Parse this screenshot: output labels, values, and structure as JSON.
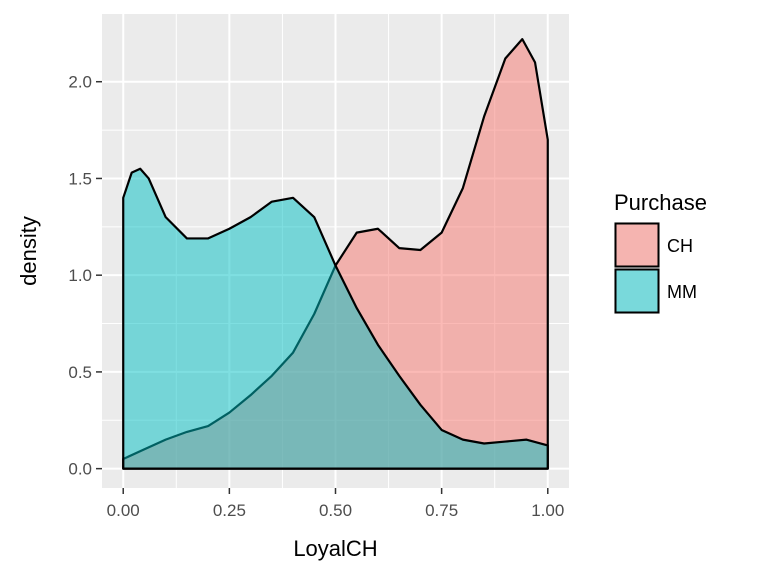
{
  "chart_data": {
    "type": "area",
    "title": "",
    "xlabel": "LoyalCH",
    "ylabel": "density",
    "xlim": [
      -0.05,
      1.05
    ],
    "ylim": [
      -0.1,
      2.35
    ],
    "grid": true,
    "legend_position": "right",
    "x_ticks": [
      0,
      0.25,
      0.5,
      0.75,
      1
    ],
    "x_tick_labels": [
      "0.00",
      "0.25",
      "0.50",
      "0.75",
      "1.00"
    ],
    "y_ticks": [
      0,
      0.5,
      1,
      1.5,
      2
    ],
    "y_tick_labels": [
      "0.0",
      "0.5",
      "1.0",
      "1.5",
      "2.0"
    ],
    "legend": {
      "title": "Purchase",
      "items": [
        {
          "label": "CH",
          "color": "#F8766D"
        },
        {
          "label": "MM",
          "color": "#00BFC4"
        }
      ]
    },
    "series": [
      {
        "name": "CH",
        "color": "#F8766D",
        "x": [
          0,
          0.05,
          0.1,
          0.15,
          0.2,
          0.25,
          0.3,
          0.35,
          0.4,
          0.45,
          0.5,
          0.55,
          0.6,
          0.65,
          0.7,
          0.75,
          0.8,
          0.85,
          0.9,
          0.94,
          0.97,
          1.0
        ],
        "y": [
          0.05,
          0.1,
          0.15,
          0.19,
          0.22,
          0.29,
          0.38,
          0.48,
          0.6,
          0.8,
          1.05,
          1.22,
          1.24,
          1.14,
          1.13,
          1.22,
          1.45,
          1.82,
          2.12,
          2.22,
          2.1,
          1.7
        ]
      },
      {
        "name": "MM",
        "color": "#00BFC4",
        "x": [
          0,
          0.02,
          0.04,
          0.06,
          0.1,
          0.15,
          0.2,
          0.25,
          0.3,
          0.35,
          0.4,
          0.45,
          0.5,
          0.55,
          0.6,
          0.65,
          0.7,
          0.75,
          0.8,
          0.85,
          0.9,
          0.95,
          1.0
        ],
        "y": [
          1.4,
          1.53,
          1.55,
          1.5,
          1.3,
          1.19,
          1.19,
          1.24,
          1.3,
          1.38,
          1.4,
          1.3,
          1.05,
          0.83,
          0.64,
          0.48,
          0.33,
          0.2,
          0.15,
          0.13,
          0.14,
          0.15,
          0.12
        ]
      }
    ]
  }
}
